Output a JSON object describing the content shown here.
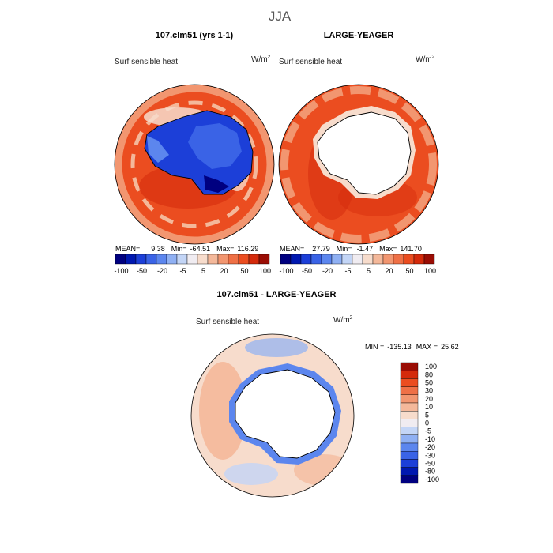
{
  "page_title": "JJA",
  "colors": {
    "c_n100": "#000080",
    "c_n80": "#0018b0",
    "c_n50": "#1c3fd8",
    "c_n30": "#3a63e6",
    "c_n20": "#5c86ee",
    "c_n10": "#8fb0f3",
    "c_n5": "#c3d5f6",
    "c_0": "#f0ecf1",
    "c_5": "#f7dccc",
    "c_10": "#f4b89a",
    "c_20": "#f29670",
    "c_30": "#ef7046",
    "c_50": "#eb4d20",
    "c_80": "#d42a0b",
    "c_100": "#9a0d04"
  },
  "chart_data": [
    {
      "type": "heatmap",
      "projection": "south-polar-stereographic",
      "title": "107.clm51 (yrs 1-1)",
      "variable_label": "Surf sensible heat",
      "units": "W/m",
      "units_exponent": "2",
      "stats": {
        "mean_label": "MEAN=",
        "mean": "9.38",
        "min_label": "Min=",
        "min": "-64.51",
        "max_label": "Max=",
        "max": "116.29"
      },
      "colorbar_ticks": [
        "-100",
        "-50",
        "-20",
        "-5",
        "5",
        "20",
        "50",
        "100"
      ],
      "colorbar_levels": [
        -100,
        -80,
        -50,
        -30,
        -20,
        -10,
        -5,
        0,
        5,
        10,
        20,
        30,
        50,
        80,
        100
      ]
    },
    {
      "type": "heatmap",
      "projection": "south-polar-stereographic",
      "title": "LARGE-YEAGER",
      "variable_label": "Surf sensible heat",
      "units": "W/m",
      "units_exponent": "2",
      "stats": {
        "mean_label": "MEAN=",
        "mean": "27.79",
        "min_label": "Min=",
        "min": "-1.47",
        "max_label": "Max=",
        "max": "141.70"
      },
      "colorbar_ticks": [
        "-100",
        "-50",
        "-20",
        "-5",
        "5",
        "20",
        "50",
        "100"
      ],
      "colorbar_levels": [
        -100,
        -80,
        -50,
        -30,
        -20,
        -10,
        -5,
        0,
        5,
        10,
        20,
        30,
        50,
        80,
        100
      ]
    },
    {
      "type": "heatmap",
      "projection": "south-polar-stereographic",
      "title": "107.clm51 - LARGE-YEAGER",
      "variable_label": "Surf sensible heat",
      "units": "W/m",
      "units_exponent": "2",
      "stats": {
        "min_label": "MIN =",
        "min": "-135.13",
        "max_label": "MAX =",
        "max": "25.62"
      },
      "colorbar_ticks": [
        "100",
        "80",
        "50",
        "30",
        "20",
        "10",
        "5",
        "0",
        "-5",
        "-10",
        "-20",
        "-30",
        "-50",
        "-80",
        "-100"
      ],
      "colorbar_levels": [
        -100,
        -80,
        -50,
        -30,
        -20,
        -10,
        -5,
        0,
        5,
        10,
        20,
        30,
        50,
        80,
        100
      ]
    }
  ]
}
